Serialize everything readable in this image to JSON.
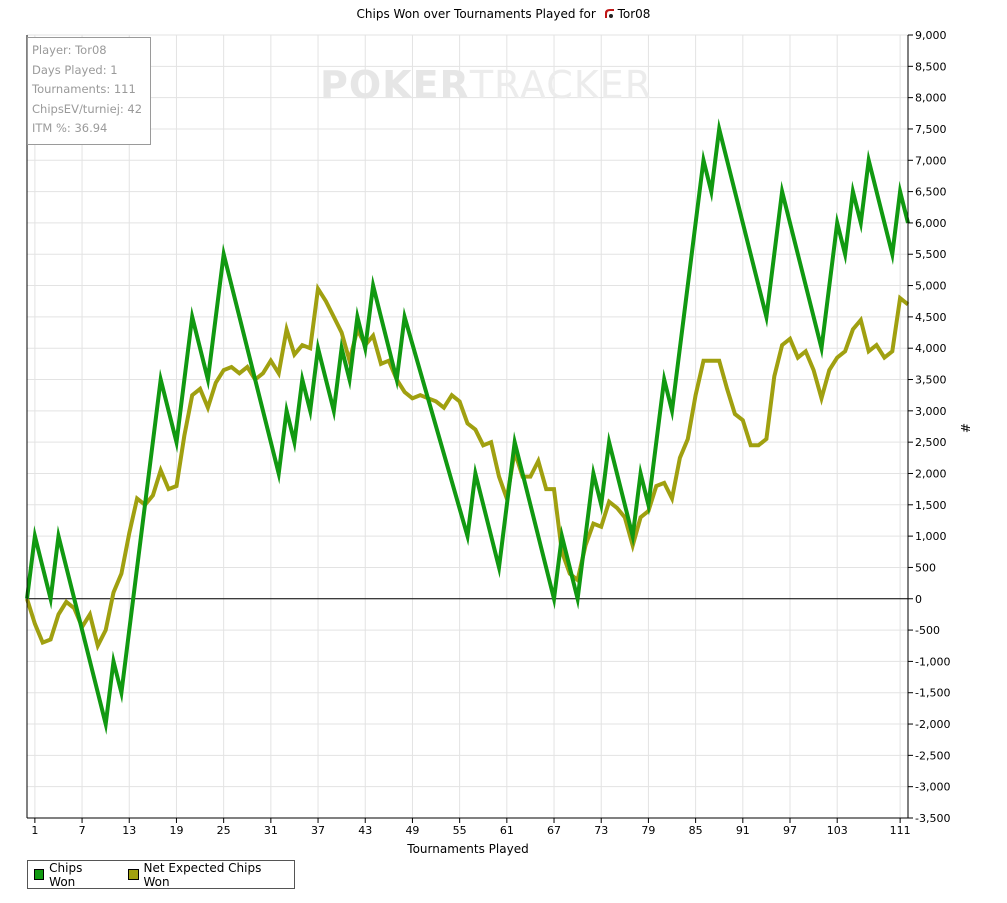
{
  "title": "Chips Won over Tournaments Played for",
  "player_name": "Tor08",
  "watermark": {
    "bold": "POKER",
    "light": "TRACKER"
  },
  "stats": [
    "Player: Tor08",
    "Days Played: 1",
    "Tournaments: 111",
    "ChipsEV/turniej: 42",
    "ITM %: 36.94"
  ],
  "legend": [
    {
      "label": "Chips Won",
      "color": "#119911"
    },
    {
      "label": "Net Expected Chips Won",
      "color": "#a0a010"
    }
  ],
  "chart_data": {
    "type": "line",
    "title": "Chips Won over Tournaments Played for Tor08",
    "xlabel": "Tournaments Played",
    "ylabel": "#",
    "xlim": [
      0,
      111
    ],
    "ylim": [
      -3500,
      9000
    ],
    "x_ticks": [
      1,
      7,
      13,
      19,
      25,
      31,
      37,
      43,
      49,
      55,
      61,
      67,
      73,
      79,
      85,
      91,
      97,
      103,
      111
    ],
    "y_ticks": [
      "9,000",
      "8,500",
      "8,000",
      "7,500",
      "7,000",
      "6,500",
      "6,000",
      "5,500",
      "5,000",
      "4,500",
      "4,000",
      "3,500",
      "3,000",
      "2,500",
      "2,000",
      "1,500",
      "1,000",
      "500",
      "0",
      "-500",
      "-1,000",
      "-1,500",
      "-2,000",
      "-2,500",
      "-3,000",
      "-3,500"
    ],
    "y_tick_values": [
      9000,
      8500,
      8000,
      7500,
      7000,
      6500,
      6000,
      5500,
      5000,
      4500,
      4000,
      3500,
      3000,
      2500,
      2000,
      1500,
      1000,
      500,
      0,
      -500,
      -1000,
      -1500,
      -2000,
      -2500,
      -3000,
      -3500
    ],
    "series": [
      {
        "name": "Chips Won",
        "color": "#119911",
        "points": [
          [
            0,
            0
          ],
          [
            1,
            1000
          ],
          [
            3,
            0
          ],
          [
            4,
            1000
          ],
          [
            10,
            -2000
          ],
          [
            11,
            -1000
          ],
          [
            12,
            -1500
          ],
          [
            17,
            3500
          ],
          [
            19,
            2500
          ],
          [
            21,
            4500
          ],
          [
            23,
            3500
          ],
          [
            25,
            5500
          ],
          [
            32,
            2000
          ],
          [
            33,
            3000
          ],
          [
            34,
            2500
          ],
          [
            35,
            3500
          ],
          [
            36,
            3000
          ],
          [
            37,
            4000
          ],
          [
            39,
            3000
          ],
          [
            40,
            4000
          ],
          [
            41,
            3500
          ],
          [
            42,
            4500
          ],
          [
            43,
            4000
          ],
          [
            44,
            5000
          ],
          [
            47,
            3500
          ],
          [
            48,
            4500
          ],
          [
            56,
            1000
          ],
          [
            57,
            2000
          ],
          [
            60,
            500
          ],
          [
            62,
            2500
          ],
          [
            67,
            0
          ],
          [
            68,
            1000
          ],
          [
            70,
            0
          ],
          [
            72,
            2000
          ],
          [
            73,
            1500
          ],
          [
            74,
            2500
          ],
          [
            77,
            1000
          ],
          [
            78,
            2000
          ],
          [
            79,
            1500
          ],
          [
            81,
            3500
          ],
          [
            82,
            3000
          ],
          [
            86,
            7000
          ],
          [
            87,
            6500
          ],
          [
            88,
            7500
          ],
          [
            94,
            4500
          ],
          [
            96,
            6500
          ],
          [
            101,
            4000
          ],
          [
            103,
            6000
          ],
          [
            104,
            5500
          ],
          [
            105,
            6500
          ],
          [
            106,
            6000
          ],
          [
            107,
            7000
          ],
          [
            110,
            5500
          ],
          [
            111,
            6500
          ],
          [
            112,
            6000
          ]
        ]
      },
      {
        "name": "Net Expected Chips Won",
        "color": "#a0a010",
        "points": [
          [
            0,
            0
          ],
          [
            1,
            -400
          ],
          [
            2,
            -700
          ],
          [
            3,
            -650
          ],
          [
            4,
            -250
          ],
          [
            5,
            -50
          ],
          [
            6,
            -150
          ],
          [
            7,
            -450
          ],
          [
            8,
            -250
          ],
          [
            9,
            -750
          ],
          [
            10,
            -500
          ],
          [
            11,
            100
          ],
          [
            12,
            400
          ],
          [
            13,
            1050
          ],
          [
            14,
            1600
          ],
          [
            15,
            1500
          ],
          [
            16,
            1650
          ],
          [
            17,
            2050
          ],
          [
            18,
            1750
          ],
          [
            19,
            1800
          ],
          [
            20,
            2600
          ],
          [
            21,
            3250
          ],
          [
            22,
            3350
          ],
          [
            23,
            3050
          ],
          [
            24,
            3450
          ],
          [
            25,
            3650
          ],
          [
            26,
            3700
          ],
          [
            27,
            3600
          ],
          [
            28,
            3700
          ],
          [
            29,
            3500
          ],
          [
            30,
            3600
          ],
          [
            31,
            3800
          ],
          [
            32,
            3600
          ],
          [
            33,
            4300
          ],
          [
            34,
            3900
          ],
          [
            35,
            4050
          ],
          [
            36,
            4000
          ],
          [
            37,
            4950
          ],
          [
            38,
            4750
          ],
          [
            39,
            4500
          ],
          [
            40,
            4250
          ],
          [
            41,
            3800
          ],
          [
            42,
            4300
          ],
          [
            43,
            4050
          ],
          [
            44,
            4200
          ],
          [
            45,
            3750
          ],
          [
            46,
            3800
          ],
          [
            47,
            3500
          ],
          [
            48,
            3300
          ],
          [
            49,
            3200
          ],
          [
            50,
            3250
          ],
          [
            51,
            3200
          ],
          [
            52,
            3150
          ],
          [
            53,
            3050
          ],
          [
            54,
            3250
          ],
          [
            55,
            3150
          ],
          [
            56,
            2800
          ],
          [
            57,
            2700
          ],
          [
            58,
            2450
          ],
          [
            59,
            2500
          ],
          [
            60,
            1950
          ],
          [
            61,
            1600
          ],
          [
            62,
            2350
          ],
          [
            63,
            1950
          ],
          [
            64,
            1950
          ],
          [
            65,
            2200
          ],
          [
            66,
            1750
          ],
          [
            67,
            1750
          ],
          [
            68,
            750
          ],
          [
            69,
            400
          ],
          [
            70,
            300
          ],
          [
            71,
            850
          ],
          [
            72,
            1200
          ],
          [
            73,
            1150
          ],
          [
            74,
            1550
          ],
          [
            75,
            1450
          ],
          [
            76,
            1300
          ],
          [
            77,
            850
          ],
          [
            78,
            1300
          ],
          [
            79,
            1400
          ],
          [
            80,
            1800
          ],
          [
            81,
            1850
          ],
          [
            82,
            1600
          ],
          [
            83,
            2250
          ],
          [
            84,
            2550
          ],
          [
            85,
            3250
          ],
          [
            86,
            3800
          ],
          [
            87,
            3800
          ],
          [
            88,
            3800
          ],
          [
            89,
            3350
          ],
          [
            90,
            2950
          ],
          [
            91,
            2850
          ],
          [
            92,
            2450
          ],
          [
            93,
            2450
          ],
          [
            94,
            2550
          ],
          [
            95,
            3550
          ],
          [
            96,
            4050
          ],
          [
            97,
            4150
          ],
          [
            98,
            3850
          ],
          [
            99,
            3950
          ],
          [
            100,
            3650
          ],
          [
            101,
            3200
          ],
          [
            102,
            3650
          ],
          [
            103,
            3850
          ],
          [
            104,
            3950
          ],
          [
            105,
            4300
          ],
          [
            106,
            4450
          ],
          [
            107,
            3950
          ],
          [
            108,
            4050
          ],
          [
            109,
            3850
          ],
          [
            110,
            3950
          ],
          [
            111,
            4800
          ],
          [
            112,
            4700
          ]
        ]
      }
    ]
  }
}
